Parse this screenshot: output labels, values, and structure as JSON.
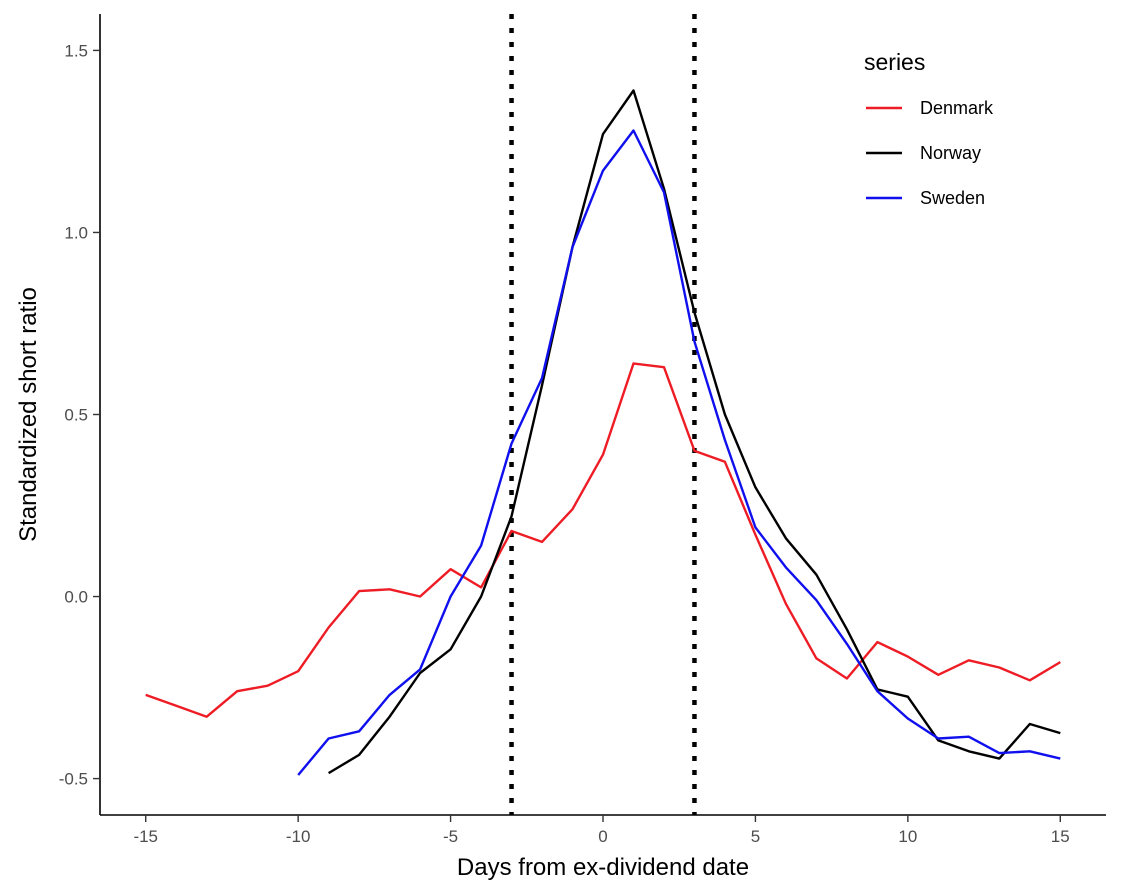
{
  "chart_data": {
    "type": "line",
    "xlabel": "Days from ex-dividend date",
    "ylabel": "Standardized short ratio",
    "xlim": [
      -16.5,
      16.5
    ],
    "ylim": [
      -0.6,
      1.6
    ],
    "x_ticks": [
      -15,
      -10,
      -5,
      0,
      5,
      10,
      15
    ],
    "x_tick_labels": [
      "-15",
      "-10",
      "-5",
      "0",
      "5",
      "10",
      "15"
    ],
    "y_ticks": [
      -0.5,
      0.0,
      0.5,
      1.0,
      1.5
    ],
    "y_tick_labels": [
      "-0.5",
      "0.0",
      "0.5",
      "1.0",
      "1.5"
    ],
    "grid": false,
    "reference_lines": [
      {
        "x": -3,
        "style": "dotted",
        "color": "#000000"
      },
      {
        "x": 3,
        "style": "dotted",
        "color": "#000000"
      }
    ],
    "legend": {
      "title": "series",
      "placement": "top-right"
    },
    "series": [
      {
        "name": "Denmark",
        "color": "#ee1c25",
        "x": [
          -15,
          -14,
          -13,
          -12,
          -11,
          -10,
          -9,
          -8,
          -7,
          -6,
          -5,
          -4,
          -3,
          -2,
          -1,
          0,
          1,
          2,
          3,
          4,
          5,
          6,
          7,
          8,
          9,
          10,
          11,
          12,
          13,
          14,
          15
        ],
        "y": [
          -0.27,
          -0.3,
          -0.33,
          -0.26,
          -0.245,
          -0.205,
          -0.085,
          0.015,
          0.02,
          0.0,
          0.075,
          0.025,
          0.18,
          0.15,
          0.24,
          0.39,
          0.64,
          0.63,
          0.4,
          0.37,
          0.17,
          -0.02,
          -0.17,
          -0.225,
          -0.125,
          -0.165,
          -0.215,
          -0.175,
          -0.195,
          -0.23,
          -0.18
        ]
      },
      {
        "name": "Norway",
        "color": "#000000",
        "x": [
          -9,
          -8,
          -7,
          -6,
          -5,
          -4,
          -3,
          -2,
          -1,
          0,
          1,
          2,
          3,
          4,
          5,
          6,
          7,
          8,
          9,
          10,
          11,
          12,
          13,
          14,
          15
        ],
        "y": [
          -0.485,
          -0.435,
          -0.33,
          -0.21,
          -0.145,
          0.0,
          0.22,
          0.58,
          0.96,
          1.27,
          1.39,
          1.12,
          0.78,
          0.5,
          0.3,
          0.16,
          0.06,
          -0.09,
          -0.255,
          -0.275,
          -0.395,
          -0.425,
          -0.445,
          -0.35,
          -0.375
        ]
      },
      {
        "name": "Sweden",
        "color": "#1010ee",
        "x": [
          -10,
          -9,
          -8,
          -7,
          -6,
          -5,
          -4,
          -3,
          -2,
          -1,
          0,
          1,
          2,
          3,
          4,
          5,
          6,
          7,
          8,
          9,
          10,
          11,
          12,
          13,
          14,
          15
        ],
        "y": [
          -0.49,
          -0.39,
          -0.37,
          -0.27,
          -0.2,
          0.0,
          0.14,
          0.42,
          0.6,
          0.96,
          1.17,
          1.28,
          1.11,
          0.7,
          0.43,
          0.19,
          0.08,
          -0.01,
          -0.13,
          -0.26,
          -0.335,
          -0.39,
          -0.385,
          -0.43,
          -0.425,
          -0.445
        ]
      }
    ]
  }
}
